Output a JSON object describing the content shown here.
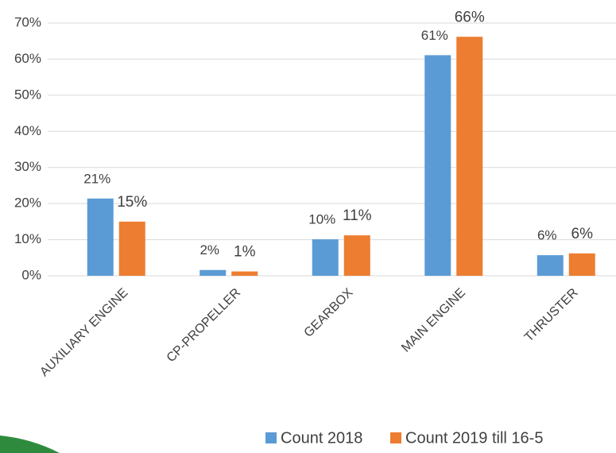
{
  "chart_data": {
    "type": "bar",
    "categories": [
      "AUXILIARY ENGINE",
      "CP-PROPELLER",
      "GEARBOX",
      "MAIN ENGINE",
      "THRUSTER"
    ],
    "series": [
      {
        "name": "Count 2018",
        "color": "#5b9bd5",
        "values": [
          21.4,
          1.6,
          10.1,
          61.1,
          5.7
        ],
        "value_labels": [
          "21%",
          "2%",
          "10%",
          "61%",
          "6%"
        ]
      },
      {
        "name": "Count 2019 till 16-5",
        "color": "#ed7d31",
        "values": [
          15.0,
          1.2,
          11.2,
          66.2,
          6.2
        ],
        "value_labels": [
          "15%",
          "1%",
          "11%",
          "66%",
          "6%"
        ]
      }
    ],
    "ylim": [
      0,
      70
    ],
    "yticks": [
      {
        "value": 0,
        "label": "0%"
      },
      {
        "value": 10,
        "label": "10%"
      },
      {
        "value": 20,
        "label": "20%"
      },
      {
        "value": 30,
        "label": "30%"
      },
      {
        "value": 40,
        "label": "40%"
      },
      {
        "value": 50,
        "label": "50%"
      },
      {
        "value": 60,
        "label": "60%"
      },
      {
        "value": 70,
        "label": "70%"
      }
    ],
    "grid": true,
    "legend": "bottom"
  }
}
